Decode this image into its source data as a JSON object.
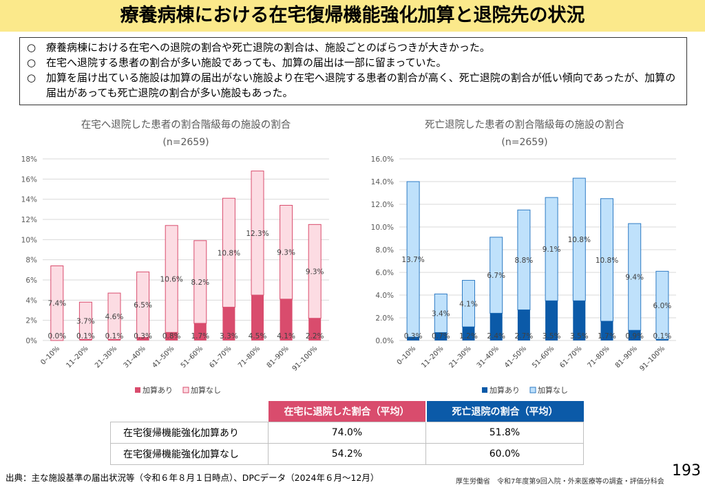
{
  "title": "療養病棟における在宅復帰機能強化加算と退院先の状況",
  "bullet_mark": "○",
  "summary": [
    "療養病棟における在宅への退院の割合や死亡退院の割合は、施設ごとのばらつきが大きかった。",
    "在宅へ退院する患者の割合が多い施設であっても、加算の届出は一部に留まっていた。",
    "加算を届け出ている施設は加算の届出がない施設より在宅へ退院する患者の割合が高く、死亡退院の割合が低い傾向であったが、加算の届出があっても死亡退院の割合が多い施設もあった。"
  ],
  "colors": {
    "title_bg": "#fbe98b",
    "left_with": "#d94c6d",
    "left_without": "#fcdce3",
    "left_without_stroke": "#d94c6d",
    "right_with": "#0b5aa8",
    "right_without": "#bfe1fb",
    "right_without_stroke": "#2e7bc4"
  },
  "chart_data": [
    {
      "type": "bar",
      "stacked": true,
      "title": "在宅へ退院した患者の割合階級毎の施設の割合",
      "subtitle": "(n=2659)",
      "categories": [
        "0–10%",
        "11–20%",
        "21–30%",
        "31–40%",
        "41–50%",
        "51–60%",
        "61–70%",
        "71–80%",
        "81–90%",
        "91–100%"
      ],
      "series": [
        {
          "name": "加算あり",
          "values": [
            0.0,
            0.1,
            0.1,
            0.3,
            0.8,
            1.7,
            3.3,
            4.5,
            4.1,
            2.2
          ],
          "labels": [
            "0.0%",
            "0.1%",
            "0.1%",
            "0.3%",
            "0.8%",
            "1.7%",
            "3.3%",
            "4.5%",
            "4.1%",
            "2.2%"
          ]
        },
        {
          "name": "加算なし",
          "values": [
            7.4,
            3.7,
            4.6,
            6.5,
            10.6,
            8.2,
            10.8,
            12.3,
            9.3,
            9.3
          ],
          "labels": [
            "7.4%",
            "3.7%",
            "4.6%",
            "6.5%",
            "10.6%",
            "8.2%",
            "10.8%",
            "12.3%",
            "9.3%",
            "9.3%"
          ]
        }
      ],
      "ylim": [
        0,
        18
      ],
      "yticks": [
        "0%",
        "2%",
        "4%",
        "6%",
        "8%",
        "10%",
        "12%",
        "14%",
        "16%",
        "18%"
      ],
      "grid": true,
      "legend": "bottom"
    },
    {
      "type": "bar",
      "stacked": true,
      "title": "死亡退院した患者の割合階級毎の施設の割合",
      "subtitle": "(n=2659)",
      "categories": [
        "0–10%",
        "11–20%",
        "21–30%",
        "31–40%",
        "41–50%",
        "51–60%",
        "61–70%",
        "71–80%",
        "81–90%",
        "91–100%"
      ],
      "series": [
        {
          "name": "加算あり",
          "values": [
            0.3,
            0.7,
            1.2,
            2.4,
            2.7,
            3.5,
            3.5,
            1.7,
            0.9,
            0.1
          ],
          "labels": [
            "0.3%",
            "0.7%",
            "1.2%",
            "2.4%",
            "2.7%",
            "3.5%",
            "3.5%",
            "1.7%",
            "0.9%",
            "0.1%"
          ]
        },
        {
          "name": "加算なし",
          "values": [
            13.7,
            3.4,
            4.1,
            6.7,
            8.8,
            9.1,
            10.8,
            10.8,
            9.4,
            6.0
          ],
          "labels": [
            "13.7%",
            "3.4%",
            "4.1%",
            "6.7%",
            "8.8%",
            "9.1%",
            "10.8%",
            "10.8%",
            "9.4%",
            "6.0%"
          ]
        }
      ],
      "ylim": [
        0,
        16
      ],
      "yticks": [
        "0.0%",
        "2.0%",
        "4.0%",
        "6.0%",
        "8.0%",
        "10.0%",
        "12.0%",
        "14.0%",
        "16.0%"
      ],
      "grid": true,
      "legend": "bottom"
    }
  ],
  "table": {
    "headers": [
      "在宅に退院した割合（平均）",
      "死亡退院の割合（平均）"
    ],
    "rows": [
      {
        "label": "在宅復帰機能強化加算あり",
        "home": "74.0%",
        "death": "51.8%"
      },
      {
        "label": "在宅復帰機能強化加算なし",
        "home": "54.2%",
        "death": "60.0%"
      }
    ]
  },
  "footer": {
    "source": "出典：主な施設基準の届出状況等（令和６年８月１日時点）、DPCデータ（2024年６月～12月）",
    "org": "厚生労働省　令和7年度第9回入院・外来医療等の調査・評価分科会",
    "page": "193"
  }
}
